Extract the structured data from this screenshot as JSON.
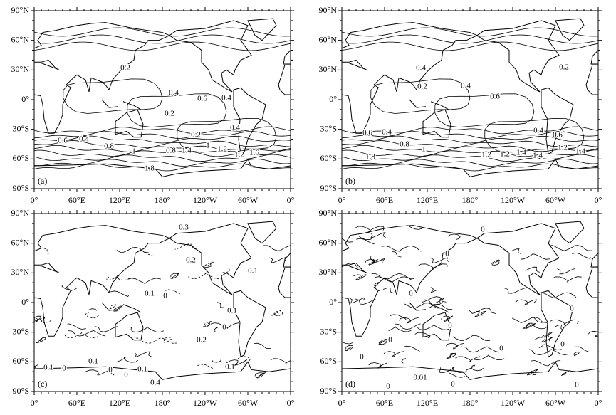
{
  "axes": {
    "x_tick_labels": [
      "0°",
      "60°E",
      "120°E",
      "180°",
      "120°W",
      "60°W",
      "0°"
    ],
    "y_tick_labels": [
      "90°N",
      "60°N",
      "30°N",
      "0°",
      "30°S",
      "60°S",
      "90°S"
    ]
  },
  "panels": [
    {
      "label": "(a)",
      "contour_labels": [
        "0.2",
        "0.4",
        "0.6",
        "0.4",
        "0.2",
        "0.4",
        "0.2",
        "0.6",
        "0.4",
        "0.8",
        "1",
        "0.8",
        "1.4",
        "1",
        "1.2",
        "1.2",
        "1.6",
        "1.8"
      ]
    },
    {
      "label": "(b)",
      "contour_labels": [
        "0.4",
        "0.2",
        "0.2",
        "0.4",
        "0.6",
        "0.4",
        "0.6",
        "0.4",
        "0.8",
        "1",
        "1.2",
        "1.2",
        "1.4",
        "1.4",
        "1.2",
        "1.4",
        "1.8",
        "0.6"
      ]
    },
    {
      "label": "(c)",
      "contour_labels": [
        "0.3",
        "0.2",
        "0.1",
        "0.1",
        "0",
        "0.1",
        "0",
        "0.1",
        "0",
        "0.1",
        "0",
        "0",
        "0.1",
        "0.2",
        "0.1",
        "0.4"
      ]
    },
    {
      "label": "(d)",
      "contour_labels": [
        "0",
        "0",
        "0",
        "0",
        "0",
        "0",
        "0",
        "0",
        "0.01",
        "0",
        "0",
        "0",
        "0"
      ]
    }
  ]
}
